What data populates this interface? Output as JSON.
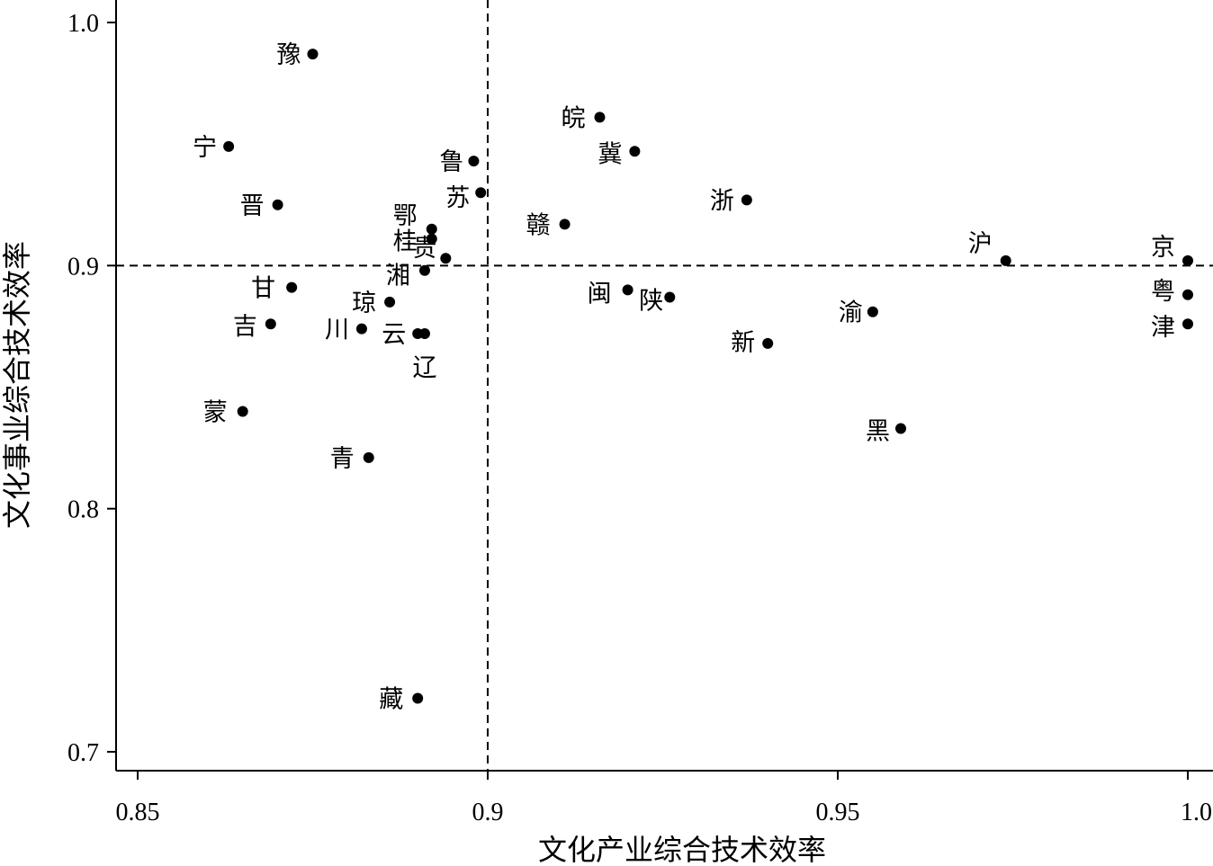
{
  "chart_data": {
    "type": "scatter",
    "title": "",
    "xlabel": "文化产业综合技术效率",
    "ylabel": "文化事业综合技术效率",
    "xlim": [
      0.85,
      1.0
    ],
    "ylim": [
      0.7,
      1.0
    ],
    "x_ticks": [
      "0.85",
      "0.9",
      "0.95",
      "1.0"
    ],
    "y_ticks": [
      "0.7",
      "0.8",
      "0.9",
      "1.0"
    ],
    "reference_lines": {
      "x": 0.9,
      "y": 0.9,
      "style": "dashed"
    },
    "grid": false,
    "marker_color": "#000000",
    "points": [
      {
        "label": "豫",
        "x": 0.875,
        "y": 0.987
      },
      {
        "label": "宁",
        "x": 0.863,
        "y": 0.949
      },
      {
        "label": "晋",
        "x": 0.87,
        "y": 0.925
      },
      {
        "label": "鲁",
        "x": 0.898,
        "y": 0.943
      },
      {
        "label": "苏",
        "x": 0.899,
        "y": 0.93
      },
      {
        "label": "鄂",
        "x": 0.892,
        "y": 0.915
      },
      {
        "label": "桂",
        "x": 0.892,
        "y": 0.911
      },
      {
        "label": "贵",
        "x": 0.894,
        "y": 0.903
      },
      {
        "label": "湘",
        "x": 0.891,
        "y": 0.898
      },
      {
        "label": "甘",
        "x": 0.872,
        "y": 0.891
      },
      {
        "label": "琼",
        "x": 0.886,
        "y": 0.885
      },
      {
        "label": "吉",
        "x": 0.869,
        "y": 0.876
      },
      {
        "label": "川",
        "x": 0.882,
        "y": 0.874
      },
      {
        "label": "云",
        "x": 0.89,
        "y": 0.872
      },
      {
        "label": "辽",
        "x": 0.891,
        "y": 0.872
      },
      {
        "label": "蒙",
        "x": 0.865,
        "y": 0.84
      },
      {
        "label": "青",
        "x": 0.883,
        "y": 0.821
      },
      {
        "label": "藏",
        "x": 0.89,
        "y": 0.722
      },
      {
        "label": "皖",
        "x": 0.916,
        "y": 0.961
      },
      {
        "label": "冀",
        "x": 0.921,
        "y": 0.947
      },
      {
        "label": "赣",
        "x": 0.911,
        "y": 0.917
      },
      {
        "label": "浙",
        "x": 0.937,
        "y": 0.927
      },
      {
        "label": "闽",
        "x": 0.92,
        "y": 0.89
      },
      {
        "label": "陕",
        "x": 0.926,
        "y": 0.887
      },
      {
        "label": "新",
        "x": 0.94,
        "y": 0.868
      },
      {
        "label": "渝",
        "x": 0.955,
        "y": 0.881
      },
      {
        "label": "黑",
        "x": 0.959,
        "y": 0.833
      },
      {
        "label": "沪",
        "x": 0.974,
        "y": 0.902
      },
      {
        "label": "京",
        "x": 1.0,
        "y": 0.902
      },
      {
        "label": "粤",
        "x": 1.0,
        "y": 0.888
      },
      {
        "label": "津",
        "x": 1.0,
        "y": 0.876
      }
    ]
  }
}
